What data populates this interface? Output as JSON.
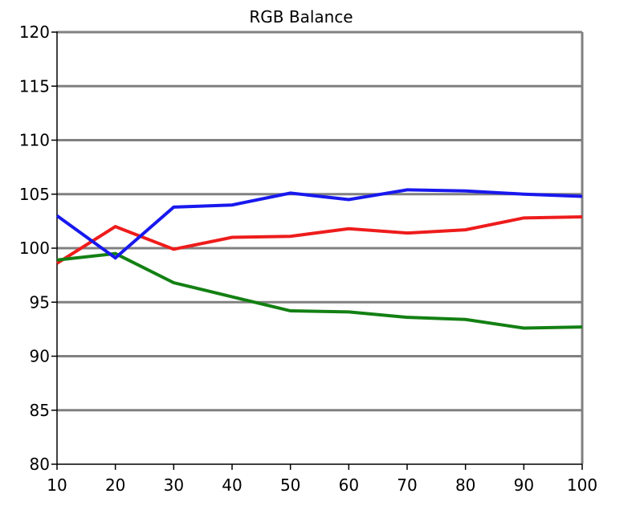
{
  "chart_data": {
    "type": "line",
    "title": "RGB Balance",
    "xlabel": "",
    "ylabel": "",
    "x": [
      10,
      20,
      30,
      40,
      50,
      60,
      70,
      80,
      90,
      100
    ],
    "xlim": [
      10,
      100
    ],
    "ylim": [
      80,
      120
    ],
    "yticks": [
      80,
      85,
      90,
      95,
      100,
      105,
      110,
      115,
      120
    ],
    "grid": "horizontal",
    "legend": "none",
    "series": [
      {
        "color": "#ee1c1c",
        "values": [
          98.6,
          102.0,
          99.9,
          101.0,
          101.1,
          101.8,
          101.4,
          101.7,
          102.8,
          102.9
        ]
      },
      {
        "color": "#138013",
        "values": [
          98.9,
          99.5,
          96.8,
          95.5,
          94.2,
          94.1,
          93.6,
          93.4,
          92.6,
          92.7
        ]
      },
      {
        "color": "#1818ee",
        "values": [
          103.0,
          99.1,
          103.8,
          104.0,
          105.1,
          104.5,
          105.4,
          105.3,
          105.0,
          104.8
        ]
      }
    ]
  }
}
